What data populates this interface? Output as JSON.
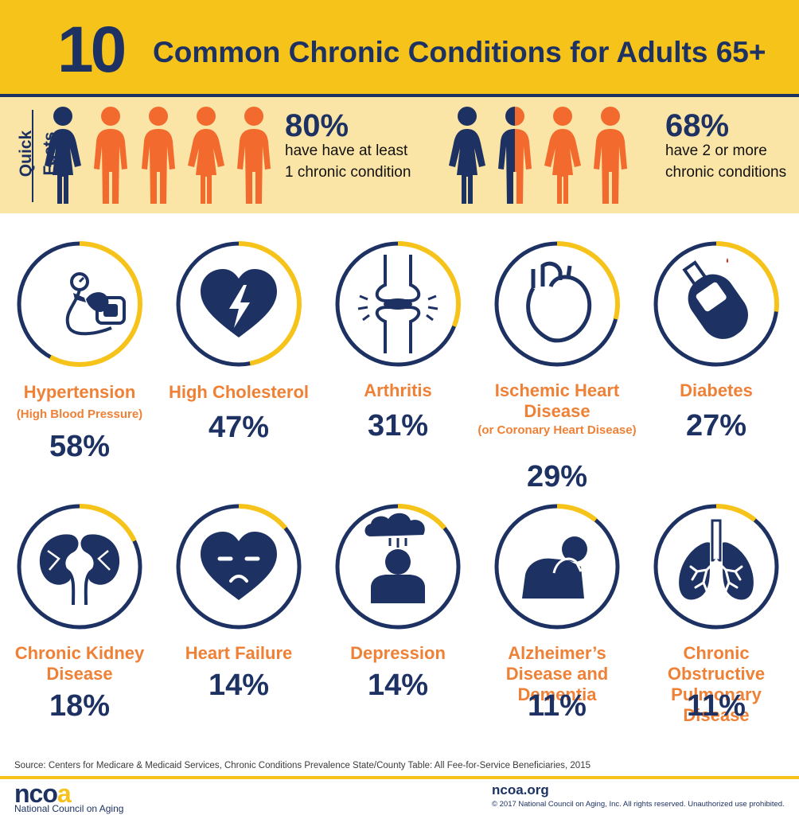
{
  "header": {
    "number": "10",
    "title": "Common Chronic Conditions for Adults 65+"
  },
  "quick_facts": {
    "label": "Quick Facts",
    "fact1": {
      "percent": "80%",
      "text": "have have at least 1 chronic condition"
    },
    "fact2": {
      "percent": "68%",
      "text": "have 2 or more chronic conditions"
    }
  },
  "chart_data": {
    "type": "bar",
    "title": "10 Common Chronic Conditions for Adults 65+",
    "categories": [
      "Hypertension (High Blood Pressure)",
      "High Cholesterol",
      "Arthritis",
      "Ischemic Heart Disease (or Coronary Heart Disease)",
      "Diabetes",
      "Chronic Kidney Disease",
      "Heart Failure",
      "Depression",
      "Alzheimer’s Disease and Dementia",
      "Chronic Obstructive Pulmonary Disease"
    ],
    "values": [
      58,
      47,
      31,
      29,
      27,
      18,
      14,
      14,
      11,
      11
    ],
    "unit": "%"
  },
  "conditions": [
    {
      "name": "Hypertension",
      "sub": "(High Blood Pressure)",
      "pct": "58%",
      "icon": "blood-pressure-monitor-icon"
    },
    {
      "name": "High Cholesterol",
      "sub": "",
      "pct": "47%",
      "icon": "broken-heart-icon"
    },
    {
      "name": "Arthritis",
      "sub": "",
      "pct": "31%",
      "icon": "knee-joint-icon"
    },
    {
      "name": "Ischemic Heart Disease",
      "sub": "(or Coronary Heart Disease)",
      "pct": "29%",
      "icon": "anatomical-heart-icon"
    },
    {
      "name": "Diabetes",
      "sub": "",
      "pct": "27%",
      "icon": "glucose-meter-icon"
    },
    {
      "name": "Chronic Kidney Disease",
      "sub": "",
      "pct": "18%",
      "icon": "kidneys-icon"
    },
    {
      "name": "Heart Failure",
      "sub": "",
      "pct": "14%",
      "icon": "sad-heart-icon"
    },
    {
      "name": "Depression",
      "sub": "",
      "pct": "14%",
      "icon": "person-rain-cloud-icon"
    },
    {
      "name": "Alzheimer’s Disease and Dementia",
      "sub": "",
      "pct": "11%",
      "icon": "head-in-hands-icon"
    },
    {
      "name": "Chronic Obstructive Pulmonary Disease",
      "sub": "",
      "pct": "11%",
      "icon": "lungs-icon"
    }
  ],
  "source": "Source: Centers for Medicare & Medicaid Services, Chronic Conditions Prevalence State/County Table: All Fee-for-Service Beneficiaries, 2015",
  "footer": {
    "logo_text": "ncoa",
    "logo_sub": "National Council on Aging",
    "site": "ncoa.org",
    "copyright": "© 2017 National Council on Aging, Inc. All rights reserved. Unauthorized use prohibited."
  },
  "colors": {
    "navy": "#1d3263",
    "orange": "#ef8137",
    "person_orange": "#f26a2e",
    "yellow": "#f6c31a",
    "pale_yellow": "#fbe5a6"
  }
}
